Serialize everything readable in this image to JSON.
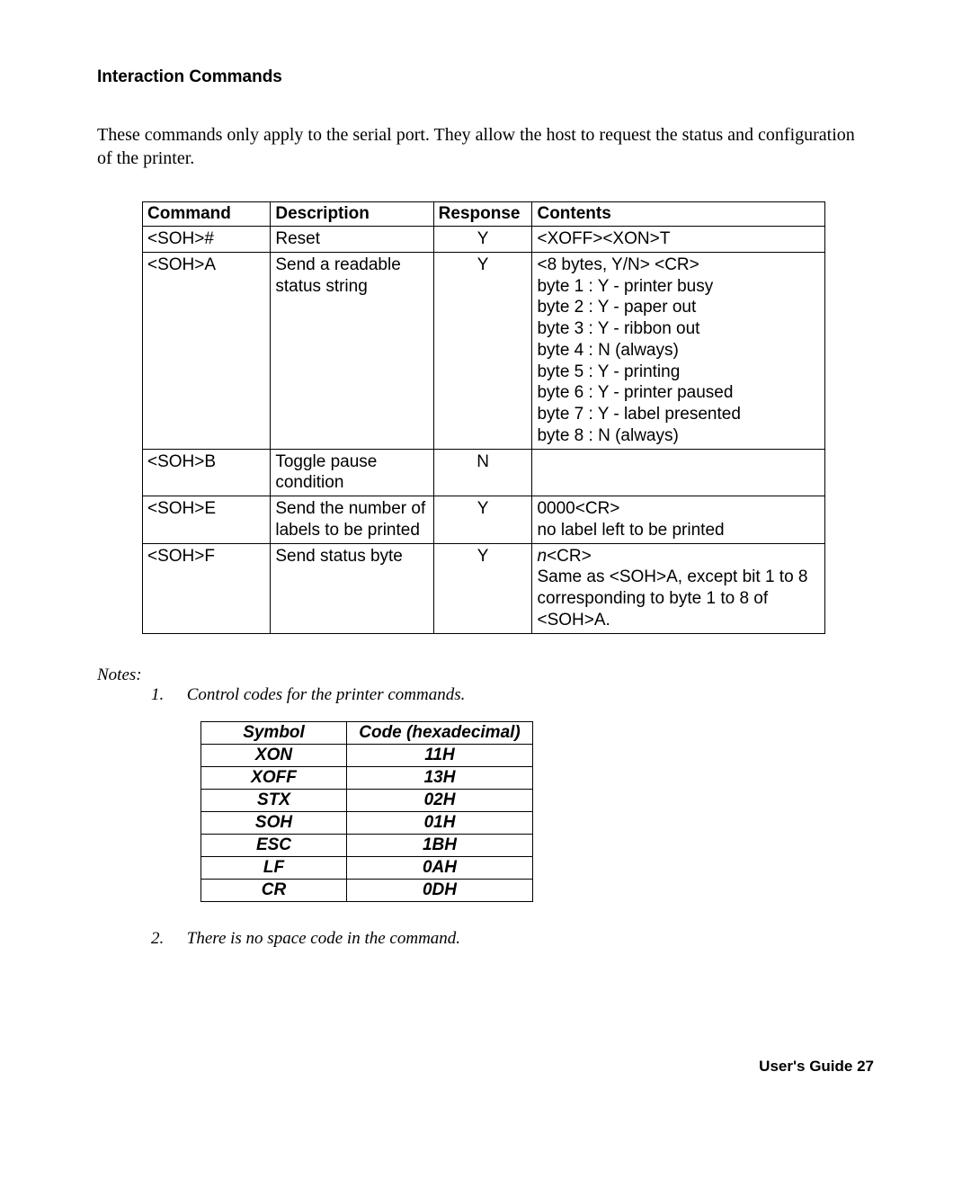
{
  "section_title": "Interaction Commands",
  "intro": "These commands only apply to the serial port.  They allow the host to request the status and configuration of the printer.",
  "main_table": {
    "headers": [
      "Command",
      "Description",
      "Response",
      "Contents"
    ],
    "rows": [
      {
        "command": "<SOH>#",
        "description": "Reset",
        "response": "Y",
        "contents": "<XOFF><XON>T"
      },
      {
        "command": "<SOH>A",
        "description": "Send a readable status string",
        "response": "Y",
        "contents": "<8 bytes, Y/N> <CR>\nbyte 1 : Y - printer busy\nbyte 2 : Y - paper out\nbyte 3 : Y - ribbon out\nbyte 4 : N (always)\nbyte 5 : Y - printing\nbyte 6 : Y - printer paused\nbyte 7 : Y - label presented\nbyte 8 : N (always)"
      },
      {
        "command": "<SOH>B",
        "description": "Toggle pause condition",
        "response": "N",
        "contents": ""
      },
      {
        "command": "<SOH>E",
        "description": "Send the number of labels to be printed",
        "response": "Y",
        "contents": "0000<CR>\nno label left to be printed"
      },
      {
        "command": "<SOH>F",
        "description": "Send status byte",
        "response": "Y",
        "contents_prefix_italic": "n",
        "contents_rest": "<CR>\nSame as <SOH>A, except bit 1 to 8 corresponding to byte 1 to 8 of <SOH>A."
      }
    ]
  },
  "notes_label": "Notes:",
  "note1_num": "1.",
  "note1_text": "Control codes for the printer commands.",
  "codes_table": {
    "headers": [
      "Symbol",
      "Code (hexadecimal)"
    ],
    "rows": [
      [
        "XON",
        "11H"
      ],
      [
        "XOFF",
        "13H"
      ],
      [
        "STX",
        "02H"
      ],
      [
        "SOH",
        "01H"
      ],
      [
        "ESC",
        "1BH"
      ],
      [
        "LF",
        "0AH"
      ],
      [
        "CR",
        "0DH"
      ]
    ]
  },
  "note2_num": "2.",
  "note2_text": "There is no space code in the command.",
  "footer": "User's Guide 27"
}
